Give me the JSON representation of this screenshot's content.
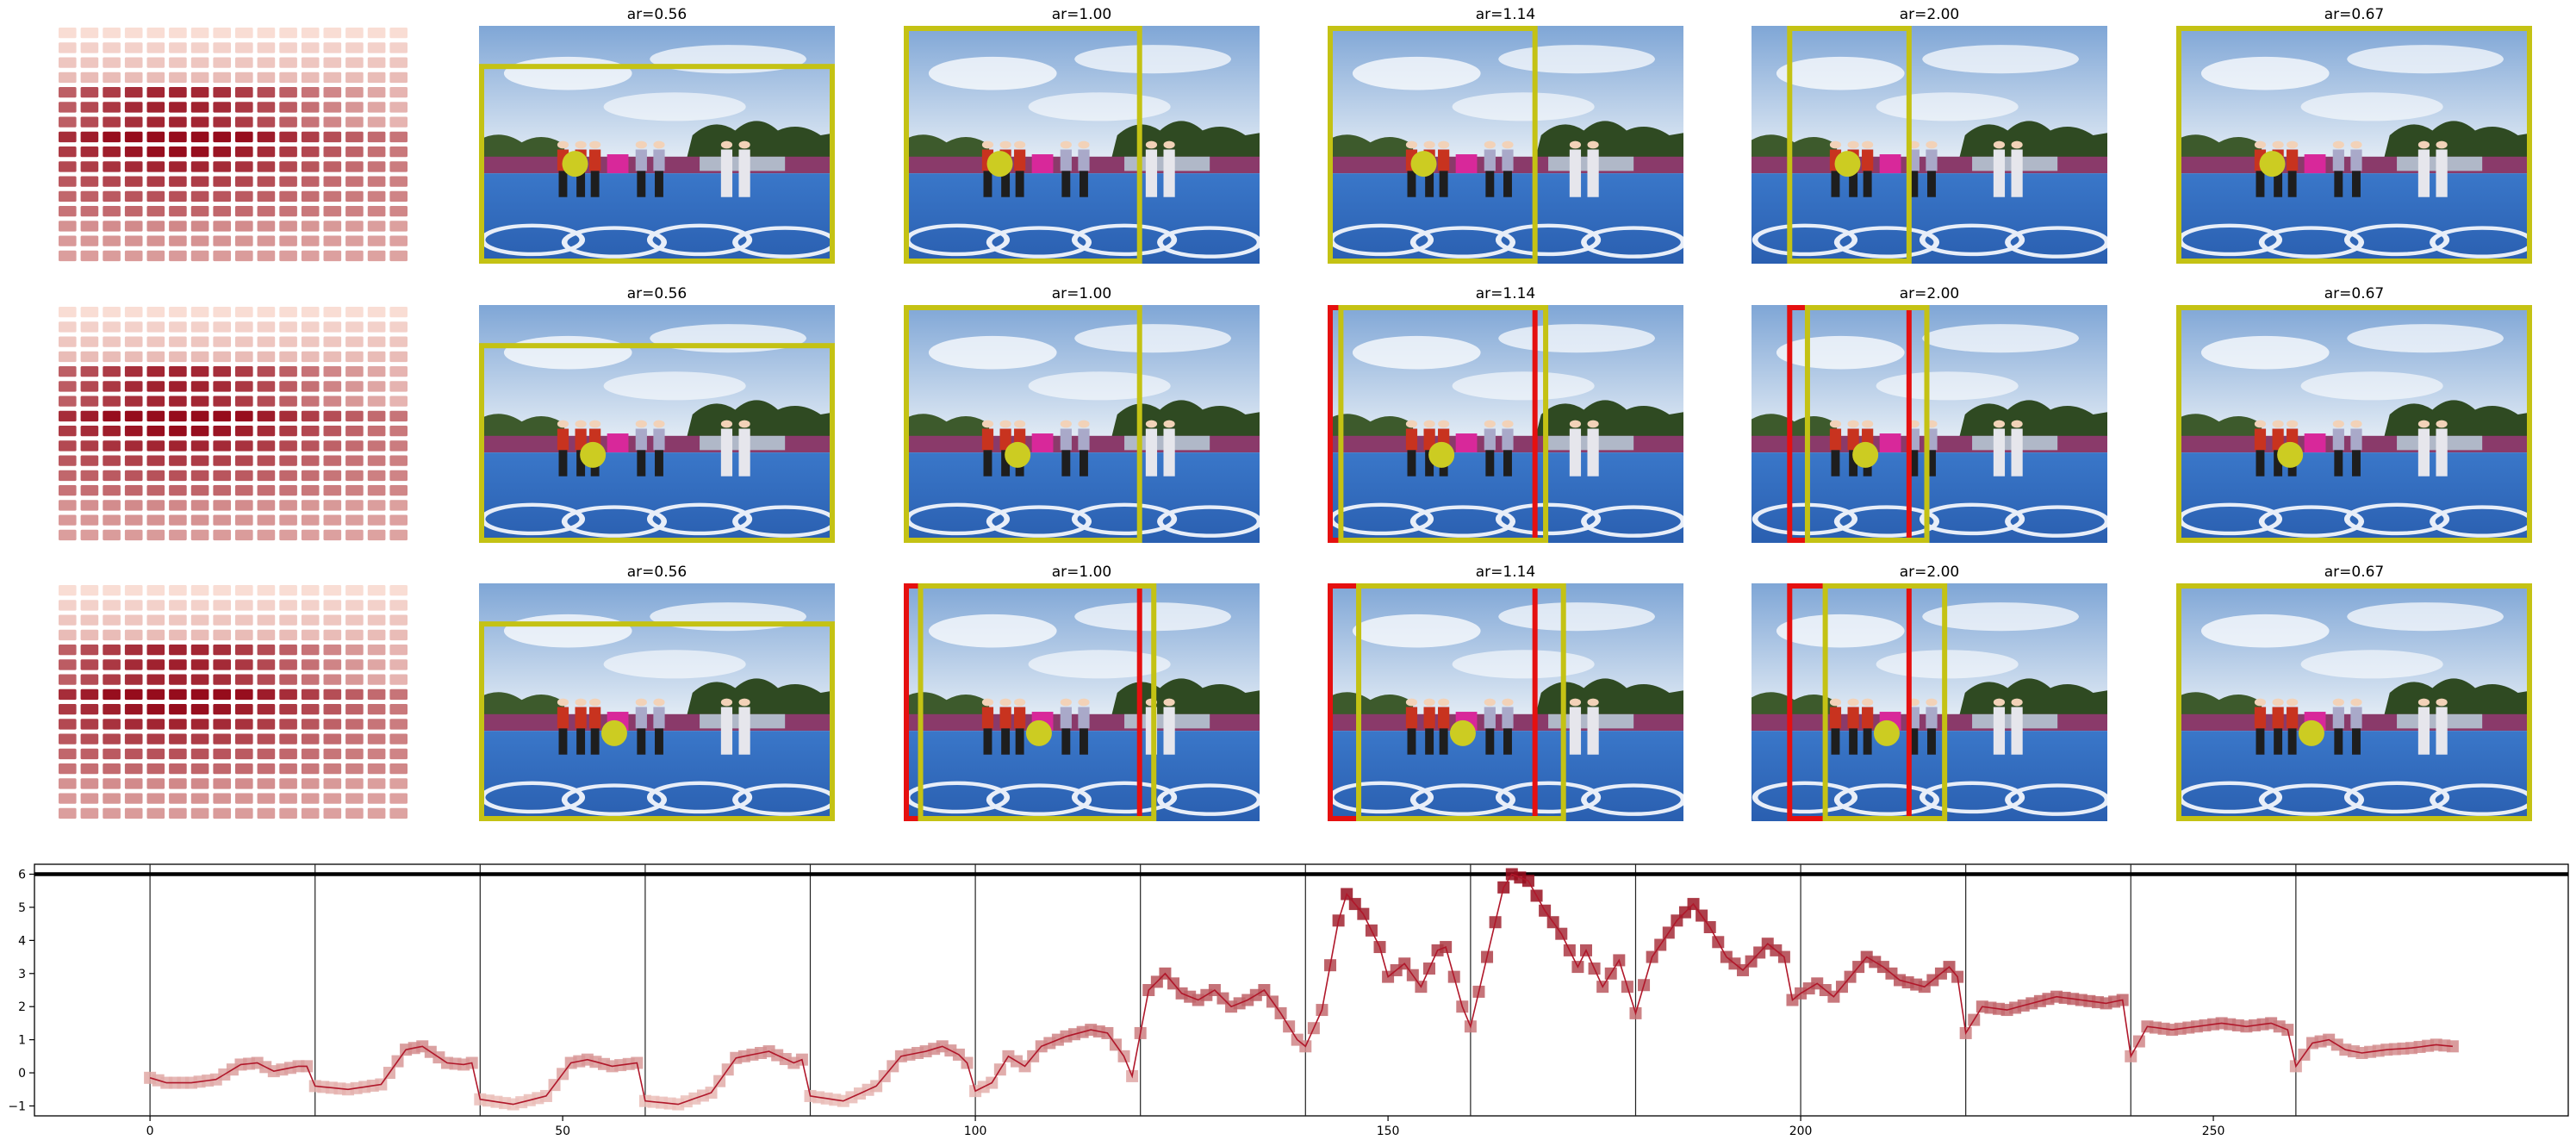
{
  "figure": {
    "colors": {
      "crop_box": "#c4c214",
      "alt_box": "#e51010",
      "anchor_dot": "#cccc22",
      "line": "#b0172a",
      "axes": "#000000"
    },
    "photo": {
      "description_icon": "archery-team-photo",
      "sky_top": "#7fa6d6",
      "sky_bottom": "#dbe6f2",
      "field": "#2f6bc0",
      "trees": "#2f4a22"
    },
    "rows": [
      {
        "heatmap": {
          "peak_row": 5,
          "peak_col": 5
        },
        "panels": [
          {
            "title": "ar=0.56",
            "dot": [
              0.27,
              0.58
            ],
            "boxes": [
              {
                "kind": "crop",
                "rect": [
                  0.0,
                  0.16,
                  1.0,
                  1.0
                ]
              }
            ]
          },
          {
            "title": "ar=1.00",
            "dot": [
              0.27,
              0.58
            ],
            "boxes": [
              {
                "kind": "crop",
                "rect": [
                  0.0,
                  0.0,
                  0.67,
                  1.0
                ]
              }
            ]
          },
          {
            "title": "ar=1.14",
            "dot": [
              0.27,
              0.58
            ],
            "boxes": [
              {
                "kind": "crop",
                "rect": [
                  0.0,
                  0.0,
                  0.59,
                  1.0
                ]
              }
            ]
          },
          {
            "title": "ar=2.00",
            "dot": [
              0.27,
              0.58
            ],
            "boxes": [
              {
                "kind": "crop",
                "rect": [
                  0.1,
                  0.0,
                  0.45,
                  1.0
                ]
              }
            ]
          },
          {
            "title": "ar=0.67",
            "dot": [
              0.27,
              0.58
            ],
            "boxes": [
              {
                "kind": "crop",
                "rect": [
                  0.0,
                  0.0,
                  1.0,
                  1.0
                ]
              }
            ]
          }
        ]
      },
      {
        "heatmap": {
          "peak_row": 5,
          "peak_col": 5
        },
        "panels": [
          {
            "title": "ar=0.56",
            "dot": [
              0.32,
              0.63
            ],
            "boxes": [
              {
                "kind": "crop",
                "rect": [
                  0.0,
                  0.16,
                  1.0,
                  1.0
                ]
              }
            ]
          },
          {
            "title": "ar=1.00",
            "dot": [
              0.32,
              0.63
            ],
            "boxes": [
              {
                "kind": "crop",
                "rect": [
                  0.0,
                  0.0,
                  0.67,
                  1.0
                ]
              }
            ]
          },
          {
            "title": "ar=1.14",
            "dot": [
              0.32,
              0.63
            ],
            "boxes": [
              {
                "kind": "alt",
                "rect": [
                  0.0,
                  0.0,
                  0.59,
                  1.0
                ]
              },
              {
                "kind": "crop",
                "rect": [
                  0.03,
                  0.0,
                  0.62,
                  1.0
                ]
              }
            ]
          },
          {
            "title": "ar=2.00",
            "dot": [
              0.32,
              0.63
            ],
            "boxes": [
              {
                "kind": "alt",
                "rect": [
                  0.1,
                  0.0,
                  0.45,
                  1.0
                ]
              },
              {
                "kind": "crop",
                "rect": [
                  0.15,
                  0.0,
                  0.5,
                  1.0
                ]
              }
            ]
          },
          {
            "title": "ar=0.67",
            "dot": [
              0.32,
              0.63
            ],
            "boxes": [
              {
                "kind": "crop",
                "rect": [
                  0.0,
                  0.0,
                  1.0,
                  1.0
                ]
              }
            ]
          }
        ]
      },
      {
        "heatmap": {
          "peak_row": 5,
          "peak_col": 5
        },
        "panels": [
          {
            "title": "ar=0.56",
            "dot": [
              0.38,
              0.63
            ],
            "boxes": [
              {
                "kind": "crop",
                "rect": [
                  0.0,
                  0.16,
                  1.0,
                  1.0
                ]
              }
            ]
          },
          {
            "title": "ar=1.00",
            "dot": [
              0.38,
              0.63
            ],
            "boxes": [
              {
                "kind": "alt",
                "rect": [
                  0.0,
                  0.0,
                  0.67,
                  1.0
                ]
              },
              {
                "kind": "crop",
                "rect": [
                  0.04,
                  0.0,
                  0.71,
                  1.0
                ]
              }
            ]
          },
          {
            "title": "ar=1.14",
            "dot": [
              0.38,
              0.63
            ],
            "boxes": [
              {
                "kind": "alt",
                "rect": [
                  0.0,
                  0.0,
                  0.59,
                  1.0
                ]
              },
              {
                "kind": "crop",
                "rect": [
                  0.08,
                  0.0,
                  0.67,
                  1.0
                ]
              }
            ]
          },
          {
            "title": "ar=2.00",
            "dot": [
              0.38,
              0.63
            ],
            "boxes": [
              {
                "kind": "alt",
                "rect": [
                  0.1,
                  0.0,
                  0.45,
                  1.0
                ]
              },
              {
                "kind": "crop",
                "rect": [
                  0.2,
                  0.0,
                  0.55,
                  1.0
                ]
              }
            ]
          },
          {
            "title": "ar=0.67",
            "dot": [
              0.38,
              0.63
            ],
            "boxes": [
              {
                "kind": "crop",
                "rect": [
                  0.0,
                  0.0,
                  1.0,
                  1.0
                ]
              }
            ]
          }
        ]
      }
    ]
  },
  "chart_data": {
    "type": "line",
    "title": "",
    "xlabel": "",
    "ylabel": "",
    "xlim": [
      -14,
      293
    ],
    "ylim": [
      -1.3,
      6.3
    ],
    "xticks": [
      0,
      50,
      100,
      150,
      200,
      250
    ],
    "yticks": [
      -1,
      0,
      1,
      2,
      3,
      4,
      5,
      6
    ],
    "x_tick_labels": [
      "0",
      "50",
      "100",
      "150",
      "200",
      "250"
    ],
    "y_tick_labels": [
      "−1",
      "0",
      "1",
      "2",
      "3",
      "4",
      "5",
      "6"
    ],
    "grid": false,
    "vertical_lines": [
      0,
      20,
      40,
      60,
      80,
      100,
      120,
      140,
      160,
      180,
      200,
      220,
      240,
      260
    ],
    "hline": 6,
    "color_scale": {
      "min": -1,
      "max": 6
    },
    "knots": [
      [
        0,
        -0.15
      ],
      [
        2,
        -0.3
      ],
      [
        5,
        -0.3
      ],
      [
        8,
        -0.2
      ],
      [
        11,
        0.25
      ],
      [
        13,
        0.3
      ],
      [
        15,
        0.05
      ],
      [
        18,
        0.2
      ],
      [
        19,
        0.2
      ],
      [
        20,
        -0.4
      ],
      [
        24,
        -0.5
      ],
      [
        28,
        -0.35
      ],
      [
        31,
        0.7
      ],
      [
        33,
        0.8
      ],
      [
        36,
        0.3
      ],
      [
        38,
        0.25
      ],
      [
        39,
        0.3
      ],
      [
        40,
        -0.8
      ],
      [
        44,
        -0.95
      ],
      [
        48,
        -0.7
      ],
      [
        51,
        0.3
      ],
      [
        53,
        0.4
      ],
      [
        56,
        0.2
      ],
      [
        59,
        0.3
      ],
      [
        60,
        -0.85
      ],
      [
        64,
        -0.95
      ],
      [
        68,
        -0.6
      ],
      [
        71,
        0.45
      ],
      [
        73,
        0.55
      ],
      [
        75,
        0.65
      ],
      [
        78,
        0.3
      ],
      [
        79,
        0.4
      ],
      [
        80,
        -0.7
      ],
      [
        84,
        -0.85
      ],
      [
        88,
        -0.4
      ],
      [
        91,
        0.5
      ],
      [
        94,
        0.65
      ],
      [
        96,
        0.8
      ],
      [
        98,
        0.55
      ],
      [
        99,
        0.3
      ],
      [
        100,
        -0.55
      ],
      [
        102,
        -0.3
      ],
      [
        104,
        0.5
      ],
      [
        106,
        0.2
      ],
      [
        108,
        0.8
      ],
      [
        111,
        1.1
      ],
      [
        114,
        1.3
      ],
      [
        116,
        1.2
      ],
      [
        118,
        0.5
      ],
      [
        119,
        -0.1
      ],
      [
        121,
        2.5
      ],
      [
        123,
        3.0
      ],
      [
        125,
        2.4
      ],
      [
        127,
        2.2
      ],
      [
        129,
        2.5
      ],
      [
        131,
        2.0
      ],
      [
        133,
        2.2
      ],
      [
        135,
        2.5
      ],
      [
        137,
        1.8
      ],
      [
        139,
        1.0
      ],
      [
        140,
        0.8
      ],
      [
        142,
        1.9
      ],
      [
        144,
        4.6
      ],
      [
        145,
        5.4
      ],
      [
        147,
        4.8
      ],
      [
        149,
        3.8
      ],
      [
        150,
        2.9
      ],
      [
        152,
        3.3
      ],
      [
        154,
        2.6
      ],
      [
        156,
        3.7
      ],
      [
        157,
        3.8
      ],
      [
        159,
        2.0
      ],
      [
        160,
        1.4
      ],
      [
        162,
        3.5
      ],
      [
        164,
        5.6
      ],
      [
        165,
        6.0
      ],
      [
        167,
        5.8
      ],
      [
        169,
        4.9
      ],
      [
        171,
        4.2
      ],
      [
        173,
        3.2
      ],
      [
        174,
        3.7
      ],
      [
        176,
        2.6
      ],
      [
        178,
        3.4
      ],
      [
        180,
        1.8
      ],
      [
        182,
        3.5
      ],
      [
        185,
        4.6
      ],
      [
        187,
        5.1
      ],
      [
        189,
        4.4
      ],
      [
        191,
        3.5
      ],
      [
        193,
        3.1
      ],
      [
        196,
        3.9
      ],
      [
        198,
        3.5
      ],
      [
        199,
        2.2
      ],
      [
        200,
        2.4
      ],
      [
        202,
        2.7
      ],
      [
        204,
        2.3
      ],
      [
        206,
        2.9
      ],
      [
        208,
        3.5
      ],
      [
        210,
        3.2
      ],
      [
        212,
        2.8
      ],
      [
        215,
        2.6
      ],
      [
        218,
        3.2
      ],
      [
        219,
        2.9
      ],
      [
        220,
        1.2
      ],
      [
        222,
        2.0
      ],
      [
        225,
        1.9
      ],
      [
        228,
        2.1
      ],
      [
        231,
        2.3
      ],
      [
        234,
        2.2
      ],
      [
        237,
        2.1
      ],
      [
        239,
        2.2
      ],
      [
        240,
        0.5
      ],
      [
        242,
        1.4
      ],
      [
        245,
        1.3
      ],
      [
        248,
        1.4
      ],
      [
        251,
        1.5
      ],
      [
        254,
        1.4
      ],
      [
        257,
        1.5
      ],
      [
        259,
        1.3
      ],
      [
        260,
        0.2
      ],
      [
        262,
        0.9
      ],
      [
        264,
        1.0
      ],
      [
        266,
        0.7
      ],
      [
        268,
        0.6
      ],
      [
        271,
        0.7
      ],
      [
        274,
        0.75
      ],
      [
        277,
        0.85
      ],
      [
        279,
        0.8
      ]
    ]
  }
}
